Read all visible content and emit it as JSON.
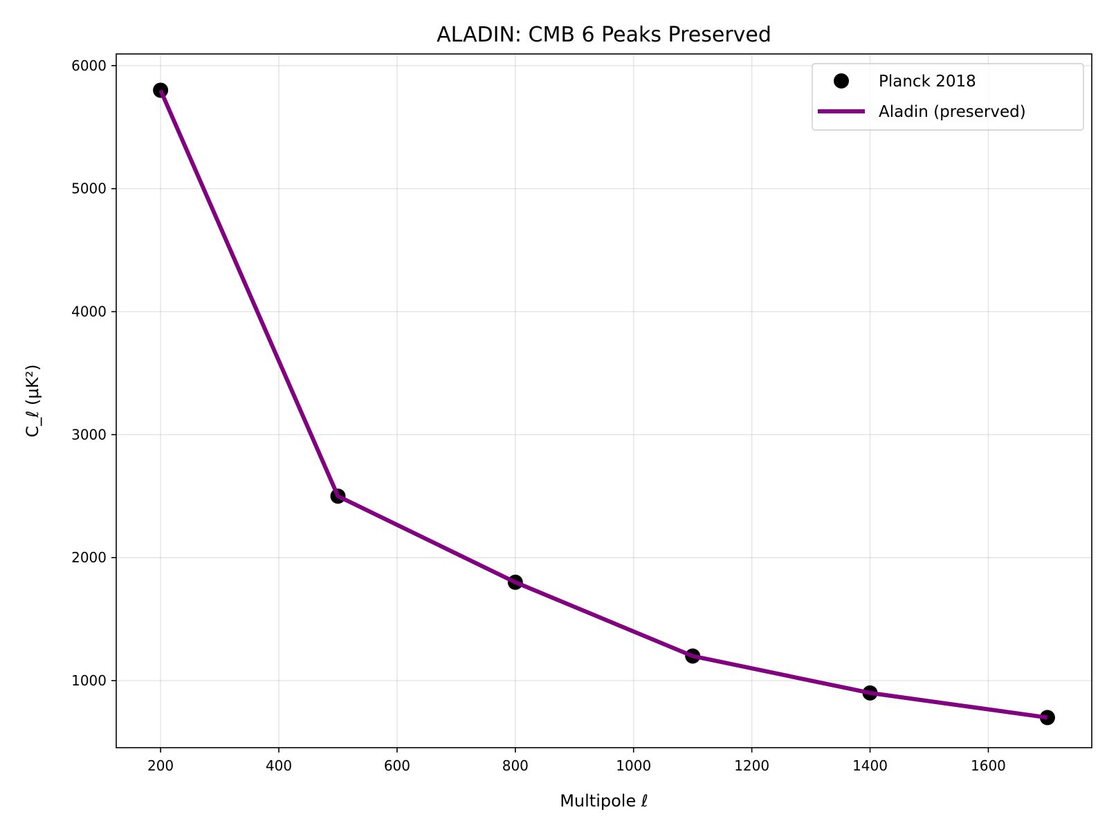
{
  "chart_data": {
    "type": "line",
    "title": "ALADIN: CMB 6 Peaks Preserved",
    "xlabel": "Multipole ℓ",
    "ylabel": "C_ℓ (μK²)",
    "xlim": [
      125,
      1775
    ],
    "ylim": [
      455,
      6095
    ],
    "xticks": [
      200,
      400,
      600,
      800,
      1000,
      1200,
      1400,
      1600
    ],
    "yticks": [
      1000,
      2000,
      3000,
      4000,
      5000,
      6000
    ],
    "grid": true,
    "legend_position": "top-right",
    "series": [
      {
        "name": "Planck 2018",
        "kind": "scatter",
        "color": "#000000",
        "x": [
          200,
          500,
          800,
          1100,
          1400,
          1700
        ],
        "y": [
          5800,
          2500,
          1800,
          1200,
          900,
          700
        ]
      },
      {
        "name": "Aladin (preserved)",
        "kind": "line",
        "color": "#800080",
        "x": [
          200,
          500,
          800,
          1100,
          1400,
          1700
        ],
        "y": [
          5800,
          2500,
          1800,
          1200,
          900,
          700
        ]
      }
    ]
  }
}
